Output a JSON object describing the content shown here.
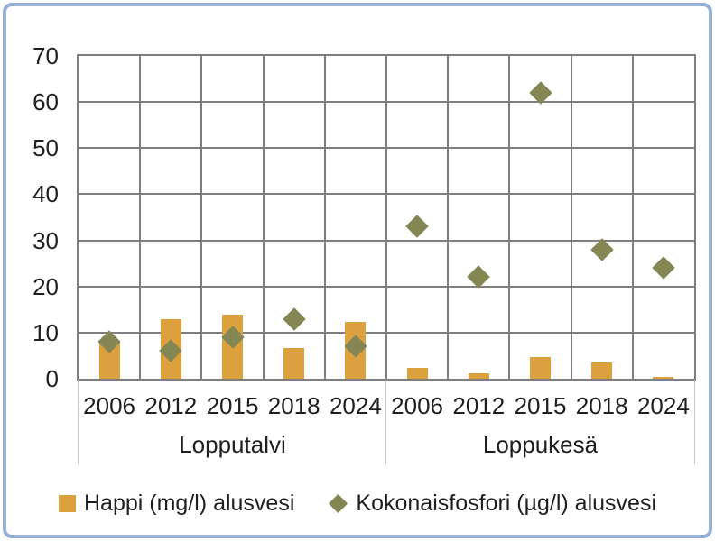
{
  "chart_data": {
    "type": "bar",
    "title": "",
    "xlabel": "",
    "ylabel": "",
    "groups": [
      {
        "label": "Lopputalvi",
        "categories": [
          "2006",
          "2012",
          "2015",
          "2018",
          "2024"
        ]
      },
      {
        "label": "Loppukesä",
        "categories": [
          "2006",
          "2012",
          "2015",
          "2018",
          "2024"
        ]
      }
    ],
    "series": [
      {
        "name": "Happi (mg/l) alusvesi",
        "type": "bar",
        "color": "#dca03f",
        "values": [
          [
            8.2,
            12.9,
            13.8,
            6.7,
            12.4
          ],
          [
            2.3,
            1.1,
            4.7,
            3.6,
            0.4
          ]
        ]
      },
      {
        "name": "Kokonaisfosfori (µg/l) alusvesi",
        "type": "scatter",
        "marker": "diamond",
        "color": "#848754",
        "values": [
          [
            8,
            6,
            9,
            13,
            7
          ],
          [
            33,
            22,
            62,
            28,
            24
          ]
        ]
      }
    ],
    "y_axis": {
      "min": 0,
      "max": 70,
      "step": 10,
      "ticks": [
        "0",
        "10",
        "20",
        "30",
        "40",
        "50",
        "60",
        "70"
      ]
    },
    "grid": true,
    "legend_position": "bottom"
  },
  "colors": {
    "frame_border": "#94afd7",
    "gridline": "#7e7e7e",
    "axis_text": "#1f1f1f",
    "category_divider": "#c9c9c9",
    "bar_fill": "#dca03f",
    "diamond_fill": "#848754"
  }
}
